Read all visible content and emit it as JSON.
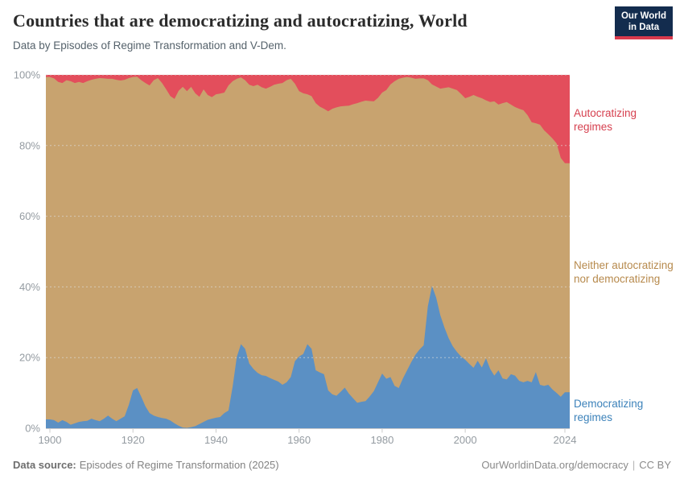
{
  "header": {
    "title": "Countries that are democratizing and autocratizing, World",
    "subtitle": "Data by Episodes of Regime Transformation and V-Dem.",
    "logo": {
      "line1": "Our World",
      "line2": "in Data"
    }
  },
  "footer": {
    "source_label": "Data source:",
    "source_value": "Episodes of Regime Transformation (2025)",
    "link": "OurWorldinData.org/democracy",
    "separator": "|",
    "license": "CC BY"
  },
  "colors": {
    "autocratizing_fill": "#e34e5c",
    "neither_fill": "#c8a36f",
    "democratizing_fill": "#5b90c4",
    "autocratizing_label": "#d6404f",
    "neither_label": "#b78a4d",
    "democratizing_label": "#3c82ba",
    "gridline": "#dddddd",
    "axis": "#cccccc",
    "tick_text": "#949ba1",
    "logo_bg": "#132c4e",
    "logo_bar": "#d93a4d"
  },
  "chart_data": {
    "type": "area",
    "stacked": true,
    "unit": "% of countries",
    "ylim": [
      0,
      100
    ],
    "grid": true,
    "legend_position": "right",
    "years": {
      "start": 1900,
      "end": 2024,
      "step": 1
    },
    "x_ticks": [
      {
        "value": 1900,
        "label": "1900"
      },
      {
        "value": 1920,
        "label": "1920"
      },
      {
        "value": 1940,
        "label": "1940"
      },
      {
        "value": 1960,
        "label": "1960"
      },
      {
        "value": 1980,
        "label": "1980"
      },
      {
        "value": 2000,
        "label": "2000"
      },
      {
        "value": 2024,
        "label": "2024"
      }
    ],
    "y_ticks": [
      {
        "value": 0,
        "label": "0%"
      },
      {
        "value": 20,
        "label": "20%"
      },
      {
        "value": 40,
        "label": "40%"
      },
      {
        "value": 60,
        "label": "60%"
      },
      {
        "value": 80,
        "label": "80%"
      },
      {
        "value": 100,
        "label": "100%"
      }
    ],
    "series": [
      {
        "name": "Democratizing regimes",
        "color": "#5b90c4",
        "values": [
          2.5,
          2.3,
          1.6,
          2.3,
          1.8,
          1.0,
          1.4,
          1.8,
          2.0,
          2.1,
          2.7,
          2.3,
          2.0,
          2.7,
          3.6,
          2.7,
          2.0,
          2.7,
          3.4,
          6.6,
          10.7,
          11.4,
          8.9,
          6.2,
          4.3,
          3.6,
          3.2,
          2.9,
          2.7,
          2.2,
          1.4,
          0.7,
          0.2,
          0.1,
          0.3,
          0.6,
          1.2,
          1.8,
          2.4,
          2.7,
          3.0,
          3.2,
          4.3,
          5.0,
          11.8,
          20.2,
          23.8,
          22.5,
          18.3,
          16.8,
          15.7,
          15.0,
          14.8,
          14.2,
          13.7,
          13.2,
          12.3,
          13.0,
          14.5,
          19.0,
          20.3,
          21.0,
          23.8,
          22.5,
          16.4,
          15.8,
          15.3,
          10.7,
          9.6,
          9.2,
          10.3,
          11.5,
          9.8,
          8.5,
          7.2,
          7.5,
          7.7,
          9.0,
          10.5,
          13.0,
          15.5,
          14.0,
          14.5,
          12.0,
          11.4,
          14.1,
          16.4,
          18.7,
          20.8,
          22.3,
          23.5,
          34.5,
          40.3,
          37.0,
          32.0,
          28.5,
          25.5,
          23.2,
          21.6,
          20.3,
          19.4,
          18.2,
          17.1,
          19.1,
          17.2,
          19.8,
          16.8,
          14.9,
          16.4,
          14.1,
          13.8,
          15.3,
          14.9,
          13.4,
          13.0,
          13.4,
          13.0,
          15.9,
          12.3,
          12.0,
          12.3,
          11.0,
          10.0,
          8.9,
          10.2
        ]
      },
      {
        "name": "Neither autocratizing nor democratizing",
        "color": "#c8a36f",
        "values_derived": "100 minus democratizing minus autocratizing (stacked remainder)"
      },
      {
        "name": "Autocratizing regimes",
        "color": "#e34e5c",
        "values": [
          0.6,
          1.0,
          2.0,
          2.3,
          1.5,
          1.8,
          2.3,
          2.0,
          2.3,
          1.8,
          1.4,
          1.1,
          0.9,
          1.0,
          1.1,
          1.1,
          1.4,
          1.6,
          1.4,
          0.9,
          0.6,
          0.5,
          1.5,
          2.3,
          3.0,
          1.5,
          0.9,
          2.3,
          4.1,
          6.0,
          6.8,
          4.5,
          3.4,
          4.6,
          3.4,
          5.2,
          6.2,
          4.1,
          5.7,
          6.3,
          5.5,
          5.3,
          5.0,
          3.0,
          1.8,
          1.1,
          0.7,
          1.5,
          2.8,
          3.2,
          2.8,
          3.5,
          3.9,
          3.4,
          2.8,
          2.5,
          2.3,
          1.5,
          1.1,
          2.5,
          4.6,
          5.2,
          5.5,
          6.0,
          8.0,
          9.0,
          9.6,
          10.3,
          9.6,
          9.2,
          8.9,
          8.8,
          8.7,
          8.3,
          8.0,
          7.6,
          7.3,
          7.4,
          7.5,
          6.5,
          5.0,
          4.3,
          2.7,
          1.8,
          1.1,
          0.8,
          0.6,
          0.8,
          1.1,
          1.0,
          1.0,
          1.5,
          2.7,
          3.3,
          3.9,
          3.7,
          3.5,
          3.9,
          4.3,
          5.4,
          6.6,
          6.2,
          5.7,
          6.2,
          6.6,
          7.2,
          7.7,
          7.5,
          8.4,
          8.0,
          7.7,
          8.4,
          9.1,
          9.6,
          10.0,
          11.4,
          13.4,
          13.7,
          14.1,
          15.7,
          16.8,
          18.0,
          19.4,
          23.5,
          25.0
        ]
      }
    ]
  }
}
